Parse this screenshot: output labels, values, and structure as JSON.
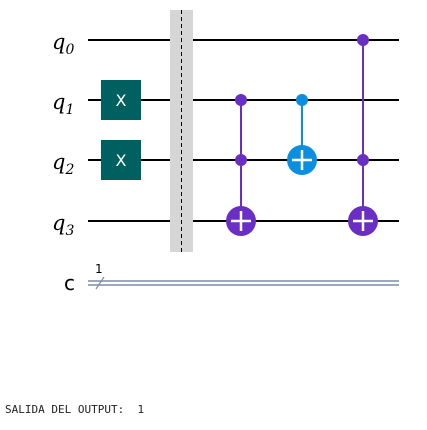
{
  "qubits": [
    {
      "name": "q",
      "index": "0"
    },
    {
      "name": "q",
      "index": "1"
    },
    {
      "name": "q",
      "index": "2"
    },
    {
      "name": "q",
      "index": "3"
    }
  ],
  "classical_register": {
    "name": "c",
    "size": "1"
  },
  "gates": {
    "x_label": "X",
    "x_targets": [
      1,
      2
    ],
    "controlled": [
      {
        "kind": "ccx",
        "controls": [
          1,
          2
        ],
        "target": 3
      },
      {
        "kind": "cx",
        "controls": [
          1
        ],
        "target": 2
      },
      {
        "kind": "ccx",
        "controls": [
          0,
          2
        ],
        "target": 3
      }
    ]
  },
  "colors": {
    "x_gate": "#005f5f",
    "ccx": "#6a2ec4",
    "cx": "#0a8fe0",
    "barrier": "#d6d6d6",
    "classical_wire": "#7c8ea6"
  },
  "output": {
    "label": "SALIDA DEL OUTPUT:",
    "value": "1"
  }
}
